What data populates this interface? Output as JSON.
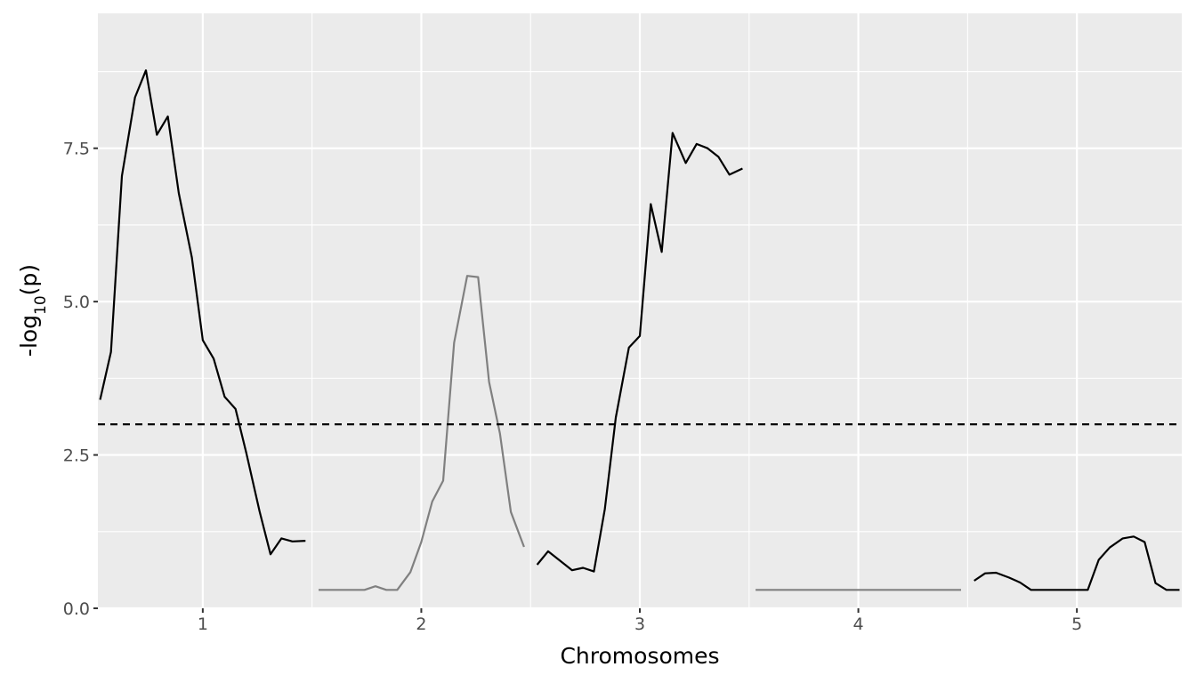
{
  "chart_data": {
    "type": "line",
    "title": "",
    "xlabel": "Chromosomes",
    "ylabel": "-log10(p)",
    "ylabel_main": "-log",
    "ylabel_sub": "10",
    "ylabel_tail": "(p)",
    "xlim": [
      0.52,
      5.48
    ],
    "ylim": [
      0,
      9.7
    ],
    "x_ticks": [
      1,
      2,
      3,
      4,
      5
    ],
    "x_tick_labels": [
      "1",
      "2",
      "3",
      "4",
      "5"
    ],
    "y_ticks": [
      0,
      2.5,
      5,
      7.5
    ],
    "y_tick_labels": [
      "0.0",
      "2.5",
      "5.0",
      "7.5"
    ],
    "grid": true,
    "panel_background": "#ebebeb",
    "grid_color": "#ffffff",
    "threshold": {
      "y": 3,
      "style": "dashed",
      "color": "#000000"
    },
    "series": [
      {
        "chromosome": "1",
        "color": "#000000",
        "points": [
          [
            0.53,
            3.4
          ],
          [
            0.58,
            4.18
          ],
          [
            0.63,
            7.05
          ],
          [
            0.69,
            8.33
          ],
          [
            0.74,
            8.77
          ],
          [
            0.79,
            7.72
          ],
          [
            0.84,
            8.02
          ],
          [
            0.89,
            6.77
          ],
          [
            0.95,
            5.72
          ],
          [
            1.0,
            4.37
          ],
          [
            1.05,
            4.07
          ],
          [
            1.1,
            3.45
          ],
          [
            1.15,
            3.25
          ],
          [
            1.2,
            2.52
          ],
          [
            1.26,
            1.58
          ],
          [
            1.31,
            0.88
          ],
          [
            1.36,
            1.14
          ],
          [
            1.41,
            1.09
          ],
          [
            1.47,
            1.1
          ]
        ]
      },
      {
        "chromosome": "2",
        "color": "#808080",
        "points": [
          [
            1.53,
            0.3
          ],
          [
            1.58,
            0.3
          ],
          [
            1.63,
            0.3
          ],
          [
            1.69,
            0.3
          ],
          [
            1.74,
            0.3
          ],
          [
            1.79,
            0.36
          ],
          [
            1.84,
            0.3
          ],
          [
            1.89,
            0.3
          ],
          [
            1.95,
            0.59
          ],
          [
            2.0,
            1.08
          ],
          [
            2.05,
            1.74
          ],
          [
            2.1,
            2.08
          ],
          [
            2.15,
            4.33
          ],
          [
            2.21,
            5.42
          ],
          [
            2.26,
            5.4
          ],
          [
            2.31,
            3.69
          ],
          [
            2.36,
            2.85
          ],
          [
            2.41,
            1.57
          ],
          [
            2.47,
            1.0
          ]
        ]
      },
      {
        "chromosome": "3",
        "color": "#000000",
        "points": [
          [
            2.53,
            0.71
          ],
          [
            2.58,
            0.93
          ],
          [
            2.63,
            0.79
          ],
          [
            2.69,
            0.62
          ],
          [
            2.74,
            0.66
          ],
          [
            2.79,
            0.6
          ],
          [
            2.84,
            1.62
          ],
          [
            2.89,
            3.11
          ],
          [
            2.95,
            4.25
          ],
          [
            3.0,
            4.44
          ],
          [
            3.05,
            6.59
          ],
          [
            3.1,
            5.81
          ],
          [
            3.15,
            7.75
          ],
          [
            3.21,
            7.26
          ],
          [
            3.26,
            7.57
          ],
          [
            3.31,
            7.5
          ],
          [
            3.36,
            7.36
          ],
          [
            3.41,
            7.07
          ],
          [
            3.47,
            7.17
          ]
        ]
      },
      {
        "chromosome": "4",
        "color": "#808080",
        "points": [
          [
            3.53,
            0.3
          ],
          [
            3.58,
            0.3
          ],
          [
            3.63,
            0.3
          ],
          [
            3.69,
            0.3
          ],
          [
            3.74,
            0.3
          ],
          [
            3.79,
            0.3
          ],
          [
            3.84,
            0.3
          ],
          [
            3.89,
            0.3
          ],
          [
            3.95,
            0.3
          ],
          [
            4.0,
            0.3
          ],
          [
            4.05,
            0.3
          ],
          [
            4.1,
            0.3
          ],
          [
            4.15,
            0.3
          ],
          [
            4.21,
            0.3
          ],
          [
            4.26,
            0.3
          ],
          [
            4.31,
            0.3
          ],
          [
            4.36,
            0.3
          ],
          [
            4.41,
            0.3
          ],
          [
            4.47,
            0.3
          ]
        ]
      },
      {
        "chromosome": "5",
        "color": "#000000",
        "points": [
          [
            4.53,
            0.45
          ],
          [
            4.58,
            0.57
          ],
          [
            4.63,
            0.58
          ],
          [
            4.69,
            0.5
          ],
          [
            4.74,
            0.42
          ],
          [
            4.79,
            0.3
          ],
          [
            4.84,
            0.3
          ],
          [
            4.89,
            0.3
          ],
          [
            4.95,
            0.3
          ],
          [
            5.0,
            0.3
          ],
          [
            5.05,
            0.3
          ],
          [
            5.1,
            0.79
          ],
          [
            5.15,
            0.99
          ],
          [
            5.21,
            1.14
          ],
          [
            5.26,
            1.17
          ],
          [
            5.31,
            1.08
          ],
          [
            5.36,
            0.41
          ],
          [
            5.41,
            0.3
          ],
          [
            5.47,
            0.3
          ]
        ]
      }
    ]
  }
}
